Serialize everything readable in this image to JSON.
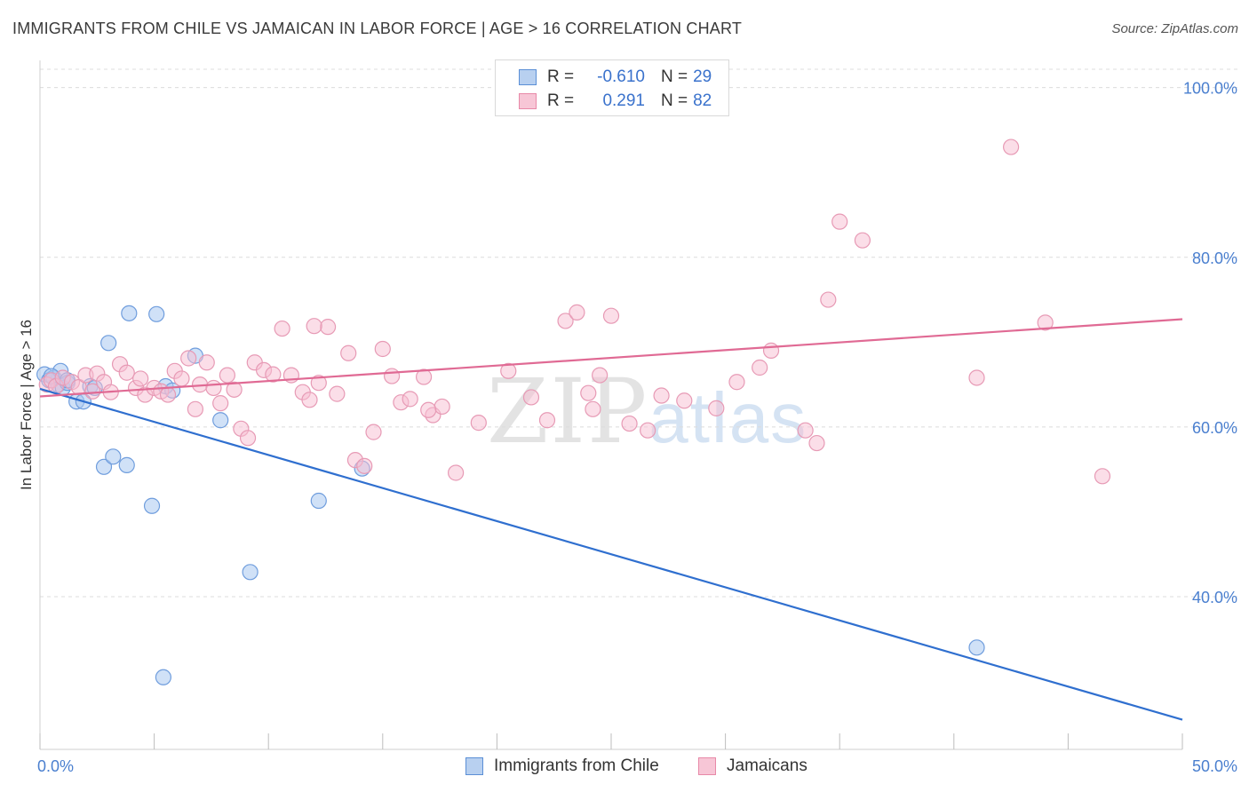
{
  "title": "IMMIGRANTS FROM CHILE VS JAMAICAN IN LABOR FORCE | AGE > 16 CORRELATION CHART",
  "source": "Source: ZipAtlas.com",
  "watermark": {
    "zip": "ZIP",
    "atlas": "atlas"
  },
  "legend": {
    "rows": [
      {
        "r_label": "R =",
        "r_value": "-0.610",
        "n_label": "N =",
        "n_value": "29",
        "color": "#5b8fd6",
        "fill": "#b8d0f0"
      },
      {
        "r_label": "R =",
        "r_value": "0.291",
        "n_label": "N =",
        "n_value": "82",
        "color": "#e889a8",
        "fill": "#f7c6d6"
      }
    ]
  },
  "bottom_legend": {
    "chile": "Immigrants from Chile",
    "jamaicans": "Jamaicans"
  },
  "colors": {
    "chile_line": "#2f6fcf",
    "jamaican_line": "#e06a94",
    "chile_fill": "rgba(170,200,240,0.55)",
    "chile_stroke": "#6f9ddd",
    "jamaican_fill": "rgba(247,190,210,0.5)",
    "jamaican_stroke": "#e79ab5",
    "grid": "#dcdcdc",
    "tick_label": "#4a7fcf"
  },
  "chart_data": {
    "type": "scatter",
    "ylabel": "In Labor Force | Age > 16",
    "xlim": [
      0,
      50
    ],
    "ylim": [
      22,
      103
    ],
    "x_ticks": [
      {
        "v": 0,
        "label": "0.0%"
      },
      {
        "v": 50,
        "label": "50.0%"
      }
    ],
    "y_ticks": [
      {
        "v": 40,
        "label": "40.0%"
      },
      {
        "v": 60,
        "label": "60.0%"
      },
      {
        "v": 80,
        "label": "80.0%"
      },
      {
        "v": 100,
        "label": "100.0%"
      }
    ],
    "series": [
      {
        "name": "Immigrants from Chile",
        "trend": [
          [
            0,
            64.5
          ],
          [
            50,
            25.5
          ]
        ],
        "points": [
          [
            0.2,
            66.2
          ],
          [
            0.4,
            65.5
          ],
          [
            0.6,
            65.8
          ],
          [
            0.8,
            65.0
          ],
          [
            0.9,
            66.6
          ],
          [
            1.0,
            64.6
          ],
          [
            1.2,
            65.2
          ],
          [
            1.6,
            63.0
          ],
          [
            1.9,
            63.0
          ],
          [
            2.2,
            64.8
          ],
          [
            2.4,
            64.6
          ],
          [
            3.0,
            69.9
          ],
          [
            3.9,
            73.4
          ],
          [
            5.1,
            73.3
          ],
          [
            5.5,
            64.8
          ],
          [
            5.8,
            64.3
          ],
          [
            6.8,
            68.4
          ],
          [
            7.9,
            60.8
          ],
          [
            2.8,
            55.3
          ],
          [
            3.2,
            56.5
          ],
          [
            3.8,
            55.5
          ],
          [
            4.9,
            50.7
          ],
          [
            9.2,
            42.9
          ],
          [
            12.2,
            51.3
          ],
          [
            14.1,
            55.1
          ],
          [
            5.4,
            30.5
          ],
          [
            41.0,
            34.0
          ],
          [
            1.2,
            65.5
          ],
          [
            0.5,
            66.0
          ]
        ]
      },
      {
        "name": "Jamaicans",
        "trend": [
          [
            0,
            63.6
          ],
          [
            50,
            72.7
          ]
        ],
        "points": [
          [
            0.3,
            65.0
          ],
          [
            0.5,
            65.5
          ],
          [
            0.7,
            64.8
          ],
          [
            1.0,
            65.8
          ],
          [
            1.4,
            65.3
          ],
          [
            1.7,
            64.7
          ],
          [
            2.0,
            66.1
          ],
          [
            2.3,
            64.2
          ],
          [
            2.5,
            66.3
          ],
          [
            2.8,
            65.3
          ],
          [
            3.1,
            64.1
          ],
          [
            3.5,
            67.4
          ],
          [
            3.8,
            66.4
          ],
          [
            4.2,
            64.6
          ],
          [
            4.4,
            65.7
          ],
          [
            4.6,
            63.8
          ],
          [
            5.0,
            64.6
          ],
          [
            5.3,
            64.2
          ],
          [
            5.6,
            63.8
          ],
          [
            5.9,
            66.6
          ],
          [
            6.2,
            65.7
          ],
          [
            6.5,
            68.1
          ],
          [
            6.8,
            62.1
          ],
          [
            7.0,
            65.0
          ],
          [
            7.3,
            67.6
          ],
          [
            7.6,
            64.6
          ],
          [
            7.9,
            62.8
          ],
          [
            8.2,
            66.1
          ],
          [
            8.5,
            64.4
          ],
          [
            8.8,
            59.8
          ],
          [
            9.1,
            58.7
          ],
          [
            9.4,
            67.6
          ],
          [
            9.8,
            66.7
          ],
          [
            10.2,
            66.2
          ],
          [
            10.6,
            71.6
          ],
          [
            11.0,
            66.1
          ],
          [
            11.5,
            64.1
          ],
          [
            11.8,
            63.2
          ],
          [
            12.2,
            65.2
          ],
          [
            12.6,
            71.8
          ],
          [
            13.0,
            63.9
          ],
          [
            13.5,
            68.7
          ],
          [
            13.8,
            56.1
          ],
          [
            14.2,
            55.4
          ],
          [
            14.6,
            59.4
          ],
          [
            15.0,
            69.2
          ],
          [
            15.4,
            66.0
          ],
          [
            15.8,
            62.9
          ],
          [
            16.2,
            63.3
          ],
          [
            16.8,
            65.9
          ],
          [
            17.2,
            61.4
          ],
          [
            17.6,
            62.4
          ],
          [
            18.2,
            54.6
          ],
          [
            19.2,
            60.5
          ],
          [
            20.5,
            66.6
          ],
          [
            21.5,
            63.5
          ],
          [
            22.2,
            60.8
          ],
          [
            23.0,
            72.5
          ],
          [
            23.5,
            73.5
          ],
          [
            24.0,
            64.0
          ],
          [
            24.5,
            66.1
          ],
          [
            25.0,
            73.1
          ],
          [
            25.8,
            60.4
          ],
          [
            26.6,
            59.6
          ],
          [
            27.2,
            63.7
          ],
          [
            28.2,
            63.1
          ],
          [
            29.6,
            62.2
          ],
          [
            30.5,
            65.3
          ],
          [
            31.5,
            67.0
          ],
          [
            32.0,
            69.0
          ],
          [
            33.5,
            59.6
          ],
          [
            34.0,
            58.1
          ],
          [
            34.5,
            75.0
          ],
          [
            35.0,
            84.2
          ],
          [
            36.0,
            82.0
          ],
          [
            41.0,
            65.8
          ],
          [
            44.0,
            72.3
          ],
          [
            42.5,
            93.0
          ],
          [
            46.5,
            54.2
          ],
          [
            17.0,
            62.0
          ],
          [
            12.0,
            71.9
          ],
          [
            24.2,
            62.1
          ]
        ]
      }
    ]
  }
}
